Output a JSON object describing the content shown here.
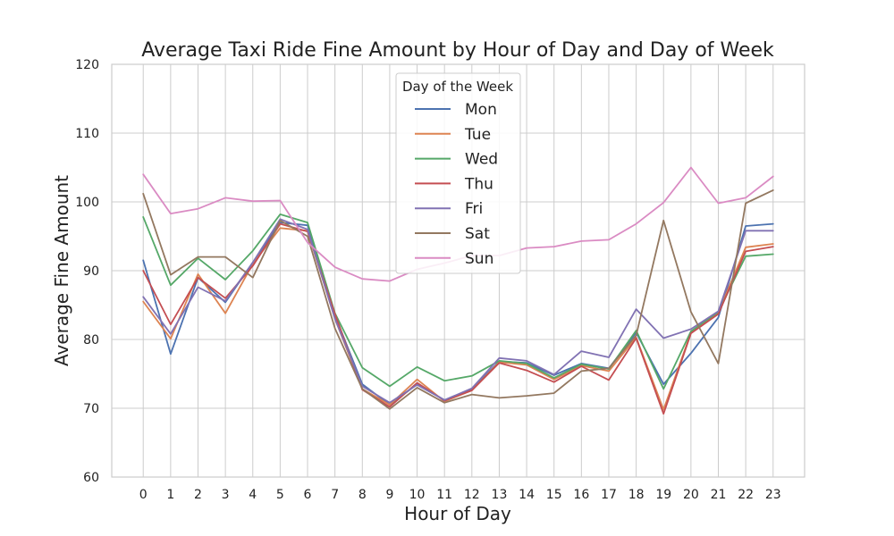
{
  "chart_data": {
    "type": "line",
    "title": "Average Taxi Ride Fine Amount by Hour of Day and Day of Week",
    "xlabel": "Hour of Day",
    "ylabel": "Average Fine Amount",
    "x": [
      0,
      1,
      2,
      3,
      4,
      5,
      6,
      7,
      8,
      9,
      10,
      11,
      12,
      13,
      14,
      15,
      16,
      17,
      18,
      19,
      20,
      21,
      22,
      23
    ],
    "xticks": [
      "0",
      "1",
      "2",
      "3",
      "4",
      "5",
      "6",
      "7",
      "8",
      "9",
      "10",
      "11",
      "12",
      "13",
      "14",
      "15",
      "16",
      "17",
      "18",
      "19",
      "20",
      "21",
      "22",
      "23"
    ],
    "xlim": [
      -1.15,
      24.15
    ],
    "ylim": [
      60,
      120
    ],
    "yticks": [
      "60",
      "70",
      "80",
      "90",
      "100",
      "110",
      "120"
    ],
    "grid": true,
    "legend": {
      "title": "Day of the Week",
      "position": "top-center"
    },
    "series": [
      {
        "name": "Mon",
        "color": "#4c72b0",
        "values": [
          91.5,
          77.9,
          89.0,
          85.4,
          91.2,
          97.0,
          96.6,
          83.5,
          73.5,
          70.5,
          73.5,
          71.2,
          72.8,
          76.8,
          76.6,
          74.8,
          76.5,
          75.8,
          81.0,
          73.5,
          78.0,
          83.2,
          96.5,
          96.8
        ]
      },
      {
        "name": "Tue",
        "color": "#dd8452",
        "values": [
          85.5,
          80.1,
          89.5,
          83.8,
          91.0,
          96.2,
          95.8,
          83.0,
          72.8,
          70.5,
          74.2,
          71.0,
          72.6,
          76.7,
          76.3,
          74.2,
          76.2,
          75.4,
          80.3,
          69.8,
          81.0,
          83.9,
          93.4,
          93.9
        ]
      },
      {
        "name": "Wed",
        "color": "#55a868",
        "values": [
          97.8,
          87.9,
          91.8,
          88.7,
          92.9,
          98.2,
          97.0,
          83.8,
          75.9,
          73.2,
          76.0,
          74.0,
          74.7,
          76.9,
          76.5,
          74.4,
          76.4,
          75.7,
          81.3,
          72.8,
          81.2,
          84.0,
          92.1,
          92.4
        ]
      },
      {
        "name": "Thu",
        "color": "#c44e52",
        "values": [
          90.0,
          82.2,
          89.0,
          86.0,
          90.7,
          96.8,
          95.7,
          83.7,
          72.7,
          70.2,
          73.7,
          71.1,
          72.6,
          76.6,
          75.5,
          73.8,
          76.1,
          74.1,
          80.2,
          69.2,
          80.9,
          83.7,
          92.8,
          93.5
        ]
      },
      {
        "name": "Fri",
        "color": "#8172b3",
        "values": [
          86.2,
          80.8,
          87.6,
          85.6,
          91.2,
          97.5,
          96.0,
          83.0,
          73.2,
          70.8,
          73.4,
          71.2,
          72.9,
          77.3,
          76.9,
          74.9,
          78.3,
          77.4,
          84.4,
          80.2,
          81.5,
          84.1,
          95.8,
          95.8
        ]
      },
      {
        "name": "Sat",
        "color": "#937860",
        "values": [
          101.2,
          89.4,
          92.0,
          92.0,
          89.0,
          97.3,
          95.0,
          81.6,
          72.8,
          69.9,
          73.0,
          70.8,
          72.0,
          71.5,
          71.8,
          72.2,
          75.4,
          75.8,
          80.6,
          97.3,
          84.0,
          76.5,
          99.8,
          101.7
        ]
      },
      {
        "name": "Sun",
        "color": "#da8bc3",
        "values": [
          104.0,
          98.3,
          99.0,
          100.6,
          100.1,
          100.2,
          94.1,
          90.5,
          88.8,
          88.5,
          90.2,
          91.1,
          92.2,
          92.2,
          93.3,
          93.5,
          94.3,
          94.5,
          96.8,
          99.9,
          105.0,
          99.8,
          100.6,
          103.7
        ]
      }
    ]
  }
}
